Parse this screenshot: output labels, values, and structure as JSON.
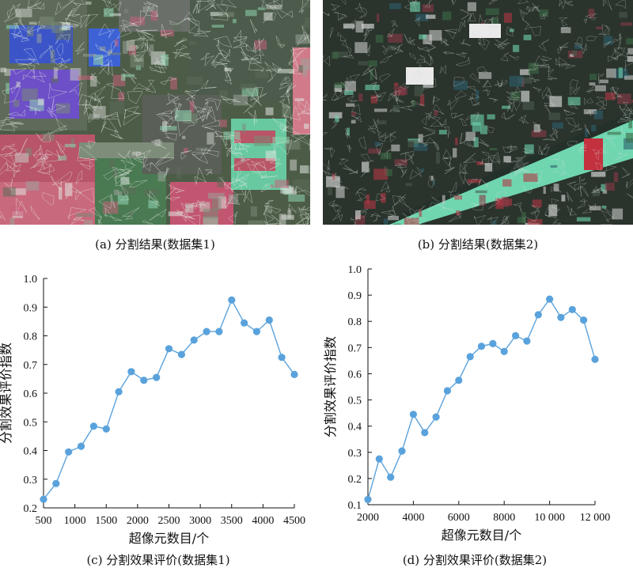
{
  "panels": {
    "a": {
      "caption": "(a) 分割结果(数据集1)"
    },
    "b": {
      "caption": "(b) 分割结果(数据集2)"
    },
    "c": {
      "caption": "(c) 分割效果评价(数据集1)"
    },
    "d": {
      "caption": "(d) 分割效果评价(数据集2)"
    }
  },
  "colors": {
    "series": "#5aa2dc",
    "axis": "#111111"
  },
  "chart_data": [
    {
      "type": "line",
      "xlabel": "超像元数目/个",
      "ylabel": "分割效果评价指数",
      "xlim": [
        500,
        4500
      ],
      "ylim": [
        0.2,
        1.0
      ],
      "xticks": [
        500,
        1000,
        1500,
        2000,
        2500,
        3000,
        3500,
        4000,
        4500
      ],
      "xtick_labels": [
        "500",
        "1000",
        "1500",
        "2000",
        "2500",
        "3000",
        "3500",
        "4000",
        "4500"
      ],
      "yticks": [
        0.2,
        0.3,
        0.4,
        0.5,
        0.6,
        0.7,
        0.8,
        0.9,
        1.0
      ],
      "ytick_labels": [
        "0.2",
        "0.3",
        "0.4",
        "0.5",
        "0.6",
        "0.7",
        "0.8",
        "0.9",
        "1.0"
      ],
      "x": [
        500,
        700,
        900,
        1100,
        1300,
        1500,
        1700,
        1900,
        2100,
        2300,
        2500,
        2700,
        2900,
        3100,
        3300,
        3500,
        3700,
        3900,
        4100,
        4300,
        4500
      ],
      "y": [
        0.23,
        0.285,
        0.395,
        0.415,
        0.485,
        0.475,
        0.605,
        0.675,
        0.645,
        0.655,
        0.755,
        0.735,
        0.785,
        0.815,
        0.815,
        0.925,
        0.845,
        0.815,
        0.855,
        0.725,
        0.665
      ]
    },
    {
      "type": "line",
      "xlabel": "超像元数目/个",
      "ylabel": "分割效果评价指数",
      "xlim": [
        2000,
        12000
      ],
      "ylim": [
        0.1,
        1.0
      ],
      "xticks": [
        2000,
        4000,
        6000,
        8000,
        10000,
        12000
      ],
      "xtick_labels": [
        "2000",
        "4000",
        "6000",
        "8000",
        "10 000",
        "12 000"
      ],
      "yticks": [
        0.1,
        0.2,
        0.3,
        0.4,
        0.5,
        0.6,
        0.7,
        0.8,
        0.9,
        1.0
      ],
      "ytick_labels": [
        "0.1",
        "0.2",
        "0.3",
        "0.4",
        "0.5",
        "0.6",
        "0.7",
        "0.8",
        "0.9",
        "1.0"
      ],
      "x": [
        2000,
        2500,
        3000,
        3500,
        4000,
        4500,
        5000,
        5500,
        6000,
        6500,
        7000,
        7500,
        8000,
        8500,
        9000,
        9500,
        10000,
        10500,
        11000,
        11500,
        12000
      ],
      "y": [
        0.12,
        0.275,
        0.205,
        0.305,
        0.445,
        0.375,
        0.435,
        0.535,
        0.575,
        0.665,
        0.705,
        0.715,
        0.685,
        0.745,
        0.725,
        0.825,
        0.885,
        0.815,
        0.845,
        0.805,
        0.655
      ]
    }
  ]
}
